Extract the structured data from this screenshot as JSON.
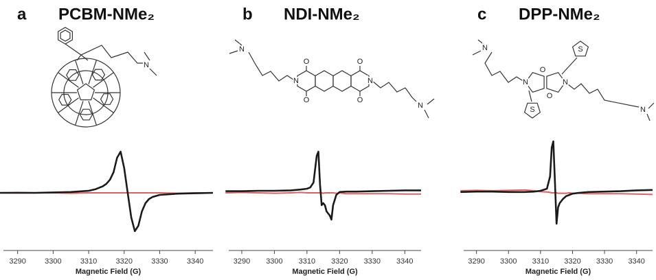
{
  "chart_data": [
    {
      "type": "line",
      "panel_label": "a",
      "title": "PCBM-NMe₂",
      "x_label": "Magnetic Field (G)",
      "x": [
        3285,
        3290,
        3295,
        3300,
        3305,
        3310,
        3312,
        3314,
        3315,
        3316,
        3317,
        3318,
        3319,
        3320,
        3321,
        3322,
        3323,
        3324,
        3325,
        3326,
        3327,
        3328,
        3330,
        3335,
        3340,
        3345
      ],
      "series": [
        {
          "color": "#e06060",
          "values": [
            0,
            0.01,
            0,
            0,
            -0.01,
            0,
            0,
            0,
            0,
            0,
            0,
            0,
            0,
            0,
            0,
            0,
            0,
            0,
            0,
            0,
            0,
            0,
            0,
            -0.01,
            0,
            0
          ]
        },
        {
          "color": "#1a1a1a",
          "values": [
            0,
            0,
            0,
            0.01,
            0.02,
            0.05,
            0.09,
            0.16,
            0.22,
            0.32,
            0.5,
            0.85,
            1.0,
            0.6,
            0,
            -0.6,
            -0.93,
            -0.8,
            -0.45,
            -0.25,
            -0.15,
            -0.1,
            -0.05,
            -0.02,
            -0.01,
            0
          ]
        }
      ],
      "xlim": [
        3286,
        3345
      ],
      "xticks": [
        3290,
        3300,
        3310,
        3320,
        3330,
        3340
      ],
      "ylim": [
        -1.4,
        1.4
      ]
    },
    {
      "type": "line",
      "panel_label": "b",
      "title": "NDI-NMe₂",
      "x_label": "Magnetic Field (G)",
      "x": [
        3285,
        3290,
        3295,
        3300,
        3305,
        3308,
        3310,
        3311,
        3312,
        3313,
        3313.5,
        3314,
        3314.5,
        3315,
        3315.5,
        3316,
        3316.5,
        3317,
        3317.5,
        3318,
        3319,
        3320,
        3322,
        3325,
        3330,
        3335,
        3340,
        3345
      ],
      "series": [
        {
          "color": "#e06060",
          "values": [
            0,
            0.01,
            0,
            -0.01,
            0,
            0.01,
            0,
            0,
            0,
            0,
            0,
            0,
            0,
            -0.01,
            0,
            0,
            0,
            0,
            0,
            0,
            -0.01,
            0,
            -0.02,
            -0.02,
            -0.02,
            -0.02,
            -0.03,
            -0.03
          ]
        },
        {
          "color": "#1a1a1a",
          "values": [
            0.04,
            0.04,
            0.05,
            0.05,
            0.06,
            0.08,
            0.1,
            0.13,
            0.25,
            0.9,
            1.0,
            0.2,
            -0.3,
            -0.25,
            -0.3,
            -0.45,
            -0.5,
            -0.55,
            -0.65,
            -0.3,
            -0.05,
            0.02,
            0.03,
            0.03,
            0.04,
            0.05,
            0.06,
            0.06
          ]
        }
      ],
      "xlim": [
        3286,
        3345
      ],
      "xticks": [
        3290,
        3300,
        3310,
        3320,
        3330,
        3340
      ],
      "ylim": [
        -1.4,
        1.4
      ]
    },
    {
      "type": "line",
      "panel_label": "c",
      "title": "DPP-NMe₂",
      "x_label": "Magnetic Field (G)",
      "x": [
        3285,
        3290,
        3295,
        3300,
        3305,
        3308,
        3310,
        3312,
        3313,
        3313.5,
        3314,
        3314.5,
        3315,
        3315.5,
        3316,
        3317,
        3318,
        3319,
        3320,
        3322,
        3325,
        3330,
        3335,
        3340,
        3345
      ],
      "series": [
        {
          "color": "#e06060",
          "values": [
            0.05,
            0.06,
            0.05,
            0.06,
            0.07,
            0.05,
            0.03,
            0.02,
            0.01,
            0,
            0,
            0,
            0,
            -0.01,
            -0.01,
            -0.01,
            -0.01,
            0,
            -0.01,
            -0.01,
            -0.02,
            -0.02,
            -0.02,
            -0.03,
            -0.04
          ]
        },
        {
          "color": "#1a1a1a",
          "values": [
            0.02,
            0.03,
            0.03,
            0.02,
            0.02,
            0.03,
            0.05,
            0.1,
            0.4,
            1.1,
            1.25,
            0.3,
            -0.75,
            -0.35,
            -0.25,
            -0.15,
            -0.08,
            -0.05,
            -0.02,
            0,
            0.02,
            0.03,
            0.04,
            0.06,
            0.07
          ]
        }
      ],
      "xlim": [
        3286,
        3345
      ],
      "xticks": [
        3290,
        3300,
        3310,
        3320,
        3330,
        3340
      ],
      "ylim": [
        -1.4,
        1.4
      ]
    }
  ],
  "structures": [
    {
      "atoms": [
        "N"
      ]
    },
    {
      "atoms": [
        "N",
        "N",
        "N",
        "O",
        "O",
        "O",
        "O",
        "N"
      ]
    },
    {
      "atoms": [
        "N",
        "N",
        "N",
        "O",
        "O",
        "S",
        "S",
        "N"
      ]
    }
  ]
}
